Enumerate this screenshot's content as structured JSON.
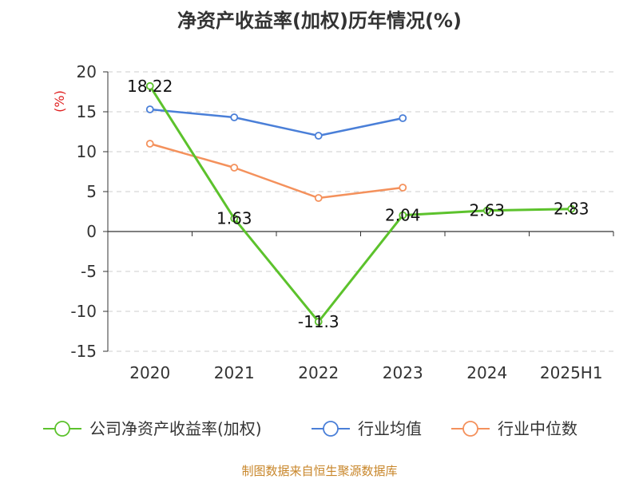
{
  "chart_data": {
    "type": "line",
    "title": "净资产收益率(加权)历年情况(%)",
    "ylabel": "(%)",
    "xlabel": "",
    "categories": [
      "2020",
      "2021",
      "2022",
      "2023",
      "2024",
      "2025H1"
    ],
    "ylim": [
      -15,
      20
    ],
    "yticks": [
      20,
      15,
      10,
      5,
      0,
      -5,
      -10,
      -15
    ],
    "grid": true,
    "legend_position": "bottom",
    "series": [
      {
        "name": "公司净资产收益率(加权)",
        "color": "#5cc22c",
        "values": [
          18.22,
          1.63,
          -11.3,
          2.04,
          2.63,
          2.83
        ],
        "labels": [
          "18.22",
          "1.63",
          "-11.3",
          "2.04",
          "2.63",
          "2.83"
        ]
      },
      {
        "name": "行业均值",
        "color": "#4a7fd8",
        "values": [
          15.3,
          14.3,
          12.0,
          14.2,
          null,
          null
        ]
      },
      {
        "name": "行业中位数",
        "color": "#f4915c",
        "values": [
          11.0,
          8.0,
          4.2,
          5.5,
          null,
          null
        ]
      }
    ]
  },
  "source": "制图数据来自恒生聚源数据库"
}
